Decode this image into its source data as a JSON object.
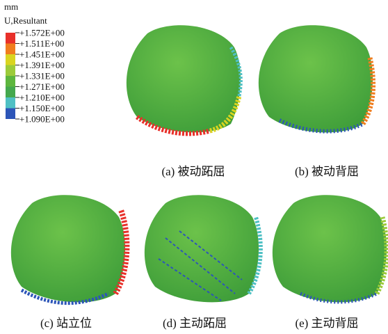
{
  "legend": {
    "unit": "mm",
    "title": "U,Resultant",
    "labels": [
      "+1.572E+00",
      "+1.511E+00",
      "+1.451E+00",
      "+1.391E+00",
      "+1.331E+00",
      "+1.271E+00",
      "+1.210E+00",
      "+1.150E+00",
      "+1.090E+00"
    ],
    "colors": [
      "#e8302a",
      "#f07d1e",
      "#d9d420",
      "#9ccb3a",
      "#5db63e",
      "#44a84e",
      "#4fc0c4",
      "#2c55b8"
    ]
  },
  "panels": [
    {
      "caption": "(a) 被动跖屈"
    },
    {
      "caption": "(b) 被动背屈"
    },
    {
      "caption": "(c) 站立位"
    },
    {
      "caption": "(d) 主动跖屈"
    },
    {
      "caption": "(e) 主动背屈"
    }
  ]
}
